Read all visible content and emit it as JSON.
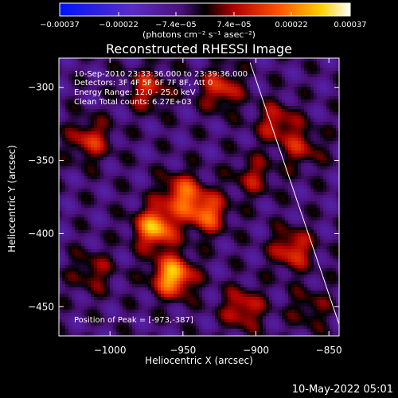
{
  "chart_data": {
    "type": "heatmap",
    "title": "Reconstructed RHESSI Image",
    "xlabel": "Heliocentric X (arcsec)",
    "ylabel": "Heliocentric Y (arcsec)",
    "xlim": [
      -1035,
      -843
    ],
    "ylim": [
      -470,
      -280
    ],
    "x_ticks": [
      -1000,
      -950,
      -900,
      -850
    ],
    "y_ticks": [
      -300,
      -350,
      -400,
      -450
    ],
    "x_tick_labels": [
      "−1000",
      "−950",
      "−900",
      "−850"
    ],
    "y_tick_labels": [
      "−300",
      "−350",
      "−400",
      "−450"
    ],
    "colorbar": {
      "ticks": [
        -0.00037,
        -0.00022,
        -7.4e-05,
        7.4e-05,
        0.00022,
        0.00037
      ],
      "labels": [
        "−0.00037",
        "−0.00022",
        "−7.4e−05",
        "7.4e−05",
        "0.00022",
        "0.00037"
      ],
      "units": "(photons cm⁻² s⁻¹ asec⁻²)",
      "range": [
        -0.00037,
        0.00037
      ]
    },
    "sources": [
      {
        "x": -970,
        "y": -395,
        "value": 0.00033
      },
      {
        "x": -958,
        "y": -428,
        "value": 0.00035
      },
      {
        "x": -935,
        "y": -385,
        "value": 0.00025
      },
      {
        "x": -952,
        "y": -372,
        "value": 0.00024
      },
      {
        "x": -1015,
        "y": -335,
        "value": 0.00018
      },
      {
        "x": -975,
        "y": -300,
        "value": 0.00017
      },
      {
        "x": -925,
        "y": -300,
        "value": 0.00019
      },
      {
        "x": -887,
        "y": -323,
        "value": 0.00016
      },
      {
        "x": -870,
        "y": -340,
        "value": 0.00014
      },
      {
        "x": -903,
        "y": -360,
        "value": 0.00013
      },
      {
        "x": -876,
        "y": -410,
        "value": 0.0002
      },
      {
        "x": -910,
        "y": -450,
        "value": 0.00018
      },
      {
        "x": -1013,
        "y": -425,
        "value": 0.00012
      },
      {
        "x": -864,
        "y": -450,
        "value": 0.0001
      }
    ],
    "annotations": {
      "time": "10-Sep-2010 23:33:36.000 to 23:39:36.000",
      "detectors": "Detectors: 3F 4F 5F 6F 7F 8F, Att 0",
      "energy": "Energy Range: 12.0 - 25.0 keV",
      "method": "Clean     Total counts: 6.27E+03",
      "peak": "Position of Peak = [-973,-387]"
    },
    "limb_line": {
      "x1": -904,
      "y1": -283,
      "x2": -843,
      "y2": -462
    }
  },
  "footer": "10-May-2022 05:01"
}
